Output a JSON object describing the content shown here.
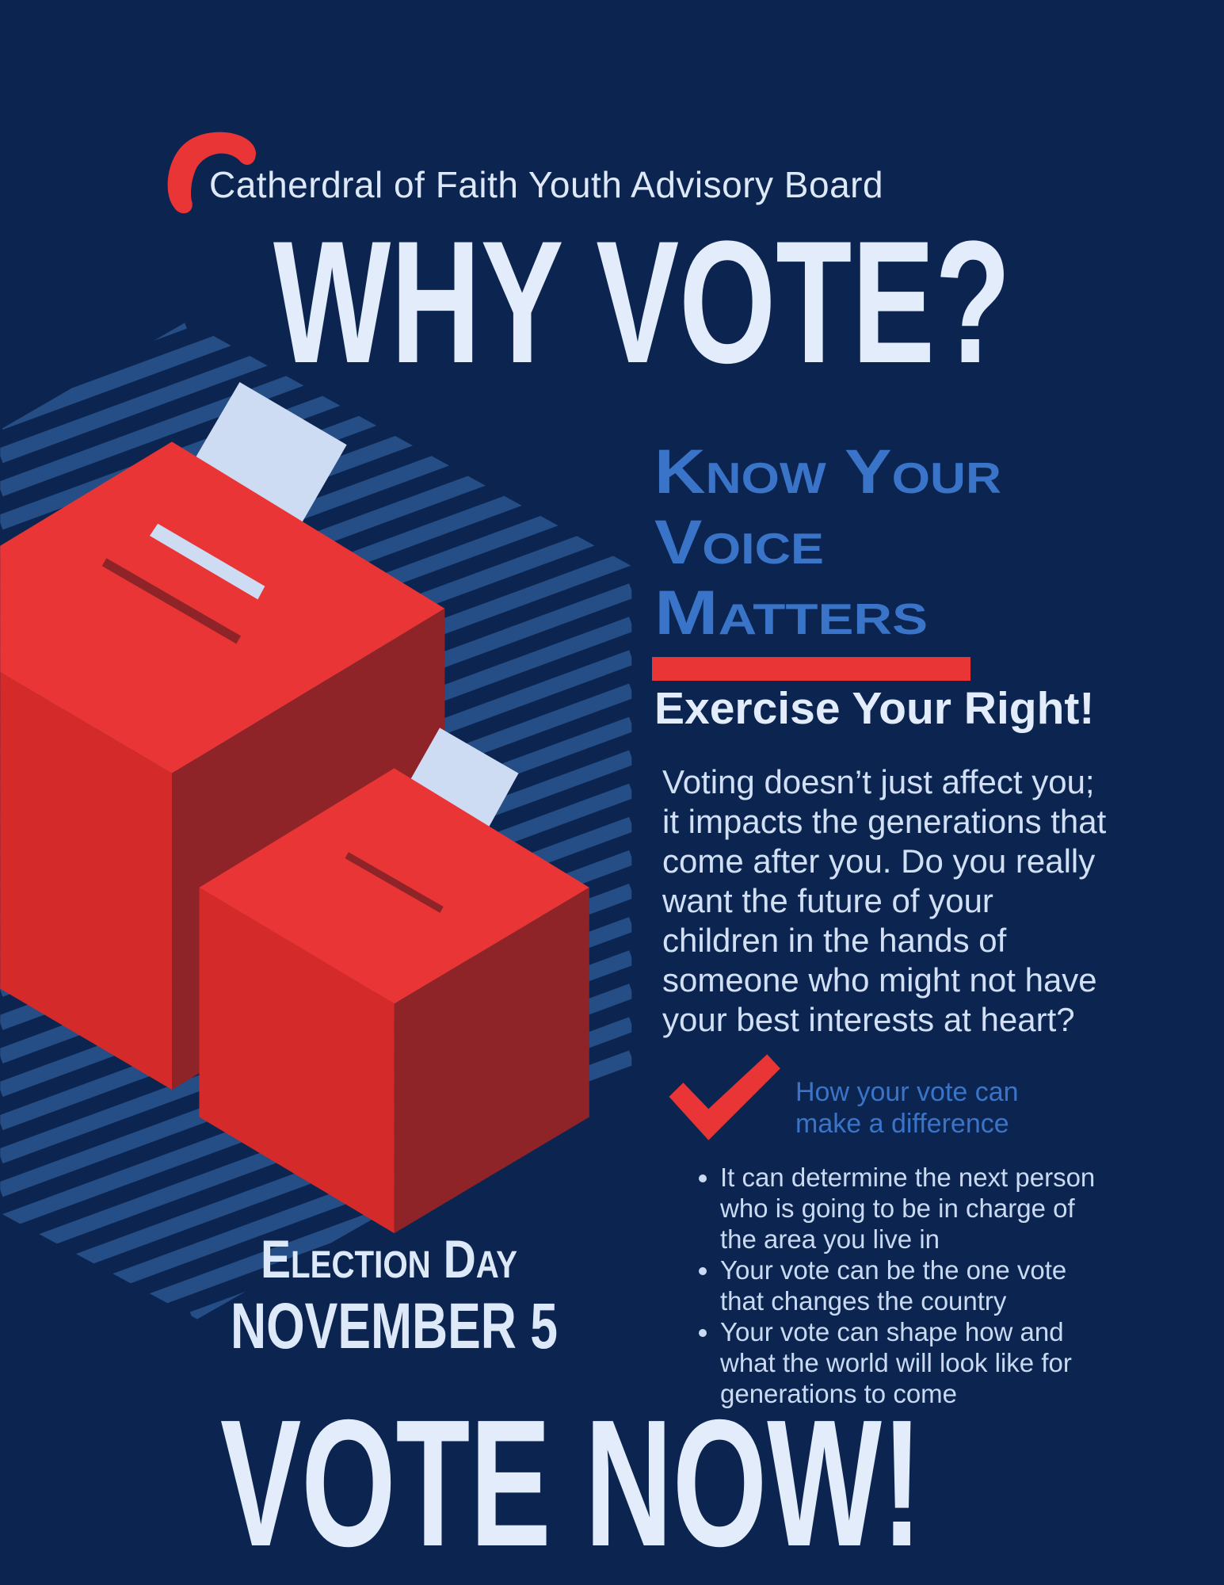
{
  "colors": {
    "background": "#0c2550",
    "accent_red": "#e93535",
    "heading_blue": "#3a74c8",
    "stripe_blue": "#264e86",
    "text_light": "#dde8f8"
  },
  "header": {
    "logo_icon": "red-hook-shape",
    "organization": "Catherdral of Faith Youth Advisory Board",
    "title": "WHY VOTE?"
  },
  "illustration": {
    "icon": "ballot-boxes"
  },
  "main": {
    "heading_lines": [
      "Know Your",
      "Voice",
      "Matters"
    ],
    "subheading": "Exercise Your Right!",
    "paragraph_lines": [
      "Voting doesn’t just affect you;",
      "it impacts the generations that",
      "come after you. Do you really",
      "want the future of your",
      "children in the hands of",
      "someone who might not have",
      "your best interests at heart?"
    ],
    "check_icon": "checkmark",
    "difference_heading_lines": [
      "How your vote can",
      "make a difference"
    ],
    "bullets": [
      "It can determine the next person\nwho is going to be in charge of\nthe area you live in",
      "Your vote can be the one vote\nthat changes the country",
      "Your vote can shape how and\nwhat the world will look like for\ngenerations to come"
    ]
  },
  "election": {
    "label": "Election Day",
    "date": "NOVEMBER 5"
  },
  "footer": {
    "cta": "VOTE NOW!"
  }
}
